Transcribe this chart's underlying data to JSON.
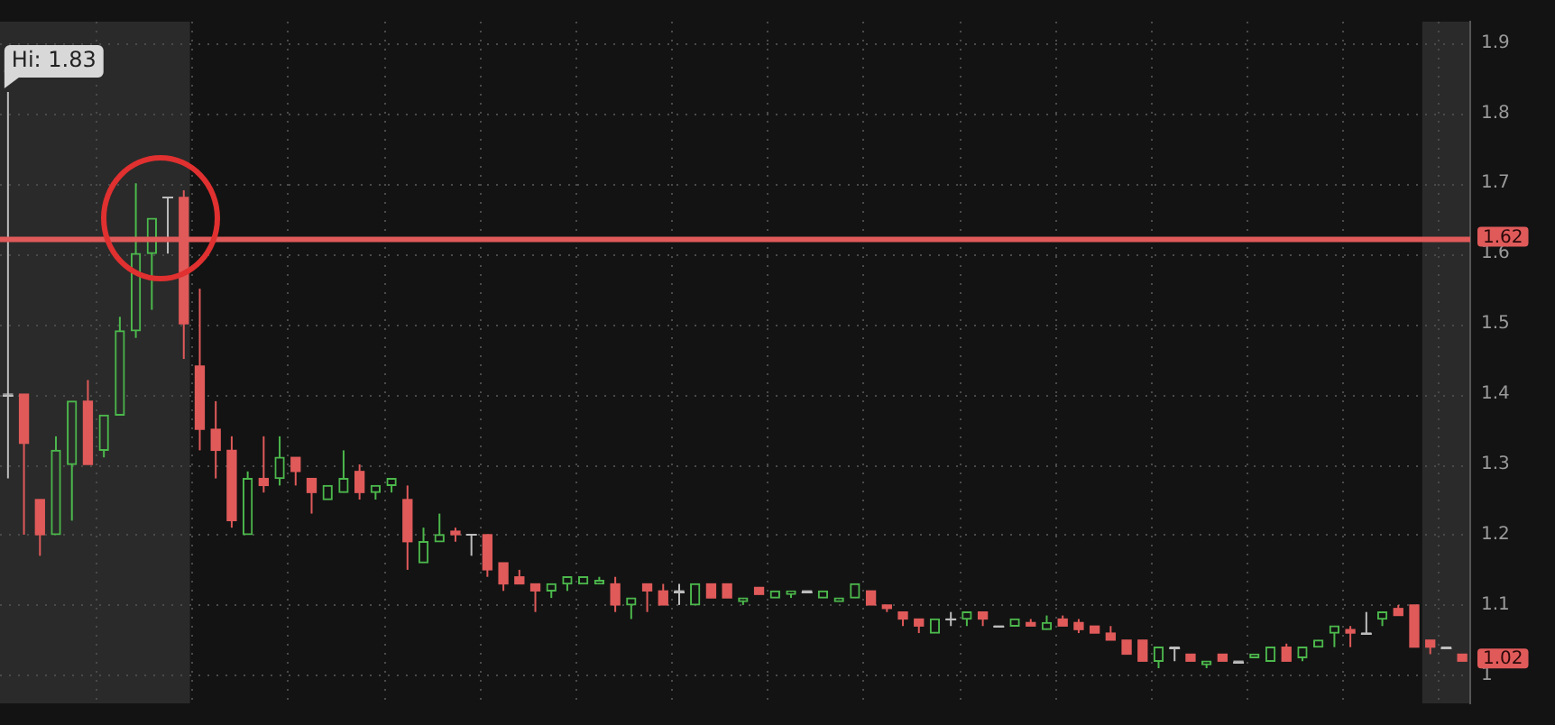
{
  "chart_data": {
    "type": "candlestick",
    "categories": [
      null,
      null,
      null,
      null,
      null,
      null,
      null,
      null,
      null,
      null,
      null,
      null,
      null,
      null,
      null,
      null,
      null,
      null,
      null,
      null,
      null,
      null,
      null,
      null,
      null,
      null,
      null,
      null,
      null,
      null,
      null,
      null,
      null,
      null,
      null,
      null,
      null,
      null,
      null,
      null,
      null,
      null,
      null,
      null,
      null,
      null,
      null,
      null,
      null,
      null,
      null,
      null,
      null,
      null,
      null,
      null,
      null,
      null,
      null,
      null,
      null,
      null,
      null,
      null,
      null,
      null,
      null,
      null,
      null,
      null,
      null,
      null,
      null,
      null,
      null,
      null,
      null,
      null,
      null,
      null,
      null,
      null,
      null,
      null,
      null,
      null,
      null,
      null,
      null,
      null,
      null,
      null
    ],
    "ohlc": [
      [
        1.4,
        1.83,
        1.28,
        1.4
      ],
      [
        1.4,
        1.4,
        1.2,
        1.33
      ],
      [
        1.25,
        1.25,
        1.17,
        1.2
      ],
      [
        1.2,
        1.34,
        1.2,
        1.32
      ],
      [
        1.3,
        1.39,
        1.22,
        1.39
      ],
      [
        1.39,
        1.42,
        1.3,
        1.3
      ],
      [
        1.32,
        1.37,
        1.31,
        1.37
      ],
      [
        1.37,
        1.51,
        1.37,
        1.49
      ],
      [
        1.49,
        1.7,
        1.48,
        1.6
      ],
      [
        1.6,
        1.65,
        1.52,
        1.65
      ],
      [
        1.68,
        1.68,
        1.6,
        1.68
      ],
      [
        1.68,
        1.69,
        1.45,
        1.5
      ],
      [
        1.44,
        1.55,
        1.32,
        1.35
      ],
      [
        1.35,
        1.39,
        1.28,
        1.32
      ],
      [
        1.32,
        1.34,
        1.21,
        1.22
      ],
      [
        1.2,
        1.29,
        1.2,
        1.28
      ],
      [
        1.28,
        1.34,
        1.26,
        1.27
      ],
      [
        1.28,
        1.34,
        1.27,
        1.31
      ],
      [
        1.31,
        1.31,
        1.27,
        1.29
      ],
      [
        1.28,
        1.28,
        1.23,
        1.26
      ],
      [
        1.25,
        1.27,
        1.25,
        1.27
      ],
      [
        1.26,
        1.32,
        1.26,
        1.28
      ],
      [
        1.29,
        1.3,
        1.25,
        1.26
      ],
      [
        1.26,
        1.27,
        1.25,
        1.27
      ],
      [
        1.27,
        1.28,
        1.26,
        1.28
      ],
      [
        1.25,
        1.27,
        1.15,
        1.19
      ],
      [
        1.16,
        1.21,
        1.16,
        1.19
      ],
      [
        1.19,
        1.23,
        1.19,
        1.2
      ],
      [
        1.205,
        1.21,
        1.19,
        1.2
      ],
      [
        1.2,
        1.2,
        1.17,
        1.2
      ],
      [
        1.2,
        1.2,
        1.14,
        1.15
      ],
      [
        1.16,
        1.16,
        1.12,
        1.13
      ],
      [
        1.14,
        1.15,
        1.13,
        1.13
      ],
      [
        1.13,
        1.13,
        1.09,
        1.12
      ],
      [
        1.12,
        1.13,
        1.11,
        1.13
      ],
      [
        1.13,
        1.14,
        1.12,
        1.14
      ],
      [
        1.13,
        1.14,
        1.13,
        1.14
      ],
      [
        1.13,
        1.14,
        1.13,
        1.135
      ],
      [
        1.13,
        1.14,
        1.09,
        1.1
      ],
      [
        1.1,
        1.11,
        1.08,
        1.11
      ],
      [
        1.13,
        1.13,
        1.09,
        1.12
      ],
      [
        1.12,
        1.13,
        1.1,
        1.1
      ],
      [
        1.12,
        1.13,
        1.1,
        1.12
      ],
      [
        1.1,
        1.13,
        1.1,
        1.13
      ],
      [
        1.13,
        1.13,
        1.11,
        1.11
      ],
      [
        1.13,
        1.13,
        1.11,
        1.11
      ],
      [
        1.105,
        1.11,
        1.1,
        1.11
      ],
      [
        1.125,
        1.125,
        1.115,
        1.115
      ],
      [
        1.11,
        1.12,
        1.11,
        1.12
      ],
      [
        1.115,
        1.12,
        1.11,
        1.12
      ],
      [
        1.12,
        1.12,
        1.12,
        1.12
      ],
      [
        1.11,
        1.12,
        1.11,
        1.12
      ],
      [
        1.105,
        1.11,
        1.105,
        1.11
      ],
      [
        1.11,
        1.13,
        1.11,
        1.13
      ],
      [
        1.12,
        1.12,
        1.1,
        1.1
      ],
      [
        1.1,
        1.1,
        1.09,
        1.095
      ],
      [
        1.09,
        1.09,
        1.07,
        1.08
      ],
      [
        1.08,
        1.08,
        1.06,
        1.07
      ],
      [
        1.06,
        1.08,
        1.06,
        1.08
      ],
      [
        1.08,
        1.09,
        1.07,
        1.08
      ],
      [
        1.08,
        1.09,
        1.07,
        1.09
      ],
      [
        1.09,
        1.09,
        1.07,
        1.08
      ],
      [
        1.07,
        1.07,
        1.07,
        1.07
      ],
      [
        1.07,
        1.08,
        1.07,
        1.08
      ],
      [
        1.075,
        1.08,
        1.07,
        1.07
      ],
      [
        1.065,
        1.085,
        1.065,
        1.075
      ],
      [
        1.08,
        1.085,
        1.07,
        1.07
      ],
      [
        1.075,
        1.08,
        1.06,
        1.065
      ],
      [
        1.07,
        1.07,
        1.06,
        1.06
      ],
      [
        1.06,
        1.07,
        1.05,
        1.05
      ],
      [
        1.05,
        1.05,
        1.03,
        1.03
      ],
      [
        1.05,
        1.05,
        1.02,
        1.02
      ],
      [
        1.02,
        1.04,
        1.01,
        1.04
      ],
      [
        1.04,
        1.04,
        1.02,
        1.04
      ],
      [
        1.03,
        1.03,
        1.02,
        1.02
      ],
      [
        1.015,
        1.02,
        1.01,
        1.02
      ],
      [
        1.03,
        1.03,
        1.02,
        1.02
      ],
      [
        1.02,
        1.02,
        1.02,
        1.02
      ],
      [
        1.025,
        1.03,
        1.025,
        1.03
      ],
      [
        1.02,
        1.04,
        1.02,
        1.04
      ],
      [
        1.04,
        1.045,
        1.02,
        1.02
      ],
      [
        1.025,
        1.04,
        1.02,
        1.04
      ],
      [
        1.04,
        1.05,
        1.04,
        1.05
      ],
      [
        1.06,
        1.07,
        1.04,
        1.07
      ],
      [
        1.065,
        1.07,
        1.04,
        1.06
      ],
      [
        1.06,
        1.09,
        1.06,
        1.06
      ],
      [
        1.08,
        1.09,
        1.07,
        1.09
      ],
      [
        1.095,
        1.1,
        1.085,
        1.085
      ],
      [
        1.1,
        1.1,
        1.04,
        1.04
      ],
      [
        1.05,
        1.05,
        1.03,
        1.04
      ],
      [
        1.04,
        1.04,
        1.04,
        1.04
      ],
      [
        1.03,
        1.03,
        1.02,
        1.02
      ]
    ],
    "colors": [
      "#bdbdbd",
      "#e05a5a",
      "#e05a5a",
      "#4cb84c",
      "#4cb84c",
      "#e05a5a",
      "#4cb84c",
      "#4cb84c",
      "#4cb84c",
      "#4cb84c",
      "#bdbdbd",
      "#e05a5a",
      "#e05a5a",
      "#e05a5a",
      "#e05a5a",
      "#4cb84c",
      "#e05a5a",
      "#4cb84c",
      "#e05a5a",
      "#e05a5a",
      "#4cb84c",
      "#4cb84c",
      "#e05a5a",
      "#4cb84c",
      "#4cb84c",
      "#e05a5a",
      "#4cb84c",
      "#4cb84c",
      "#e05a5a",
      "#bdbdbd",
      "#e05a5a",
      "#e05a5a",
      "#e05a5a",
      "#e05a5a",
      "#4cb84c",
      "#4cb84c",
      "#4cb84c",
      "#4cb84c",
      "#e05a5a",
      "#4cb84c",
      "#e05a5a",
      "#e05a5a",
      "#bdbdbd",
      "#4cb84c",
      "#e05a5a",
      "#e05a5a",
      "#4cb84c",
      "#e05a5a",
      "#4cb84c",
      "#4cb84c",
      "#bdbdbd",
      "#4cb84c",
      "#4cb84c",
      "#4cb84c",
      "#e05a5a",
      "#e05a5a",
      "#e05a5a",
      "#e05a5a",
      "#4cb84c",
      "#bdbdbd",
      "#4cb84c",
      "#e05a5a",
      "#bdbdbd",
      "#4cb84c",
      "#e05a5a",
      "#4cb84c",
      "#e05a5a",
      "#e05a5a",
      "#e05a5a",
      "#e05a5a",
      "#e05a5a",
      "#e05a5a",
      "#4cb84c",
      "#bdbdbd",
      "#e05a5a",
      "#4cb84c",
      "#e05a5a",
      "#bdbdbd",
      "#4cb84c",
      "#4cb84c",
      "#e05a5a",
      "#4cb84c",
      "#4cb84c",
      "#4cb84c",
      "#e05a5a",
      "#bdbdbd",
      "#4cb84c",
      "#e05a5a",
      "#e05a5a",
      "#e05a5a",
      "#bdbdbd",
      "#e05a5a"
    ],
    "ylim": [
      0.96,
      1.93
    ],
    "yticks": [
      1,
      1.1,
      1.2,
      1.3,
      1.4,
      1.5,
      1.6,
      1.7,
      1.8,
      1.9
    ],
    "grid": true,
    "legend": false,
    "ref_lines": [
      {
        "axis": "y",
        "value": 1.62,
        "label": "1.62",
        "color": "#e05a5a"
      }
    ],
    "annotations": [
      "Hi: 1.83",
      "1.02"
    ]
  }
}
